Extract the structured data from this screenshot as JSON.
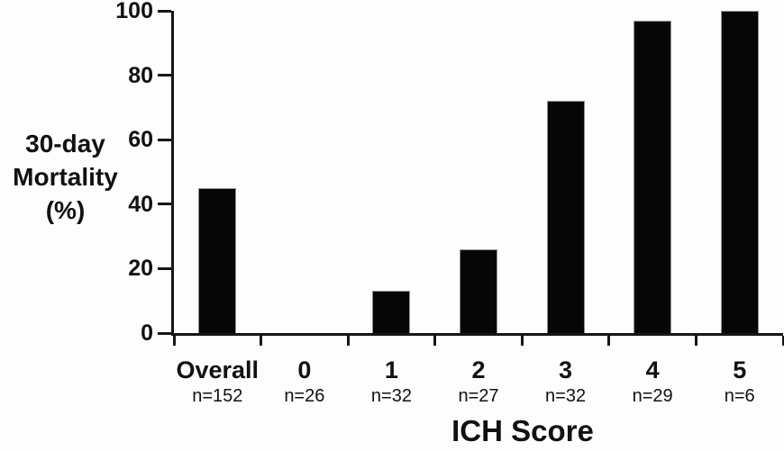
{
  "colors": {
    "bar": "#060606",
    "axis": "#161616",
    "text": "#111111"
  },
  "chart_data": {
    "type": "bar",
    "categories": [
      "Overall",
      "0",
      "1",
      "2",
      "3",
      "4",
      "5"
    ],
    "n_labels": [
      "n=152",
      "n=26",
      "n=32",
      "n=27",
      "n=32",
      "n=29",
      "n=6"
    ],
    "values": [
      45,
      0,
      13,
      26,
      72,
      97,
      100
    ],
    "title": "",
    "xlabel": "ICH Score",
    "ylabel_lines": [
      "30-day",
      "Mortality",
      "(%)"
    ],
    "ylabel": "30-day Mortality (%)",
    "ylim": [
      0,
      100
    ],
    "yticks": [
      0,
      20,
      40,
      60,
      80,
      100
    ],
    "grid": false,
    "legend": false
  }
}
